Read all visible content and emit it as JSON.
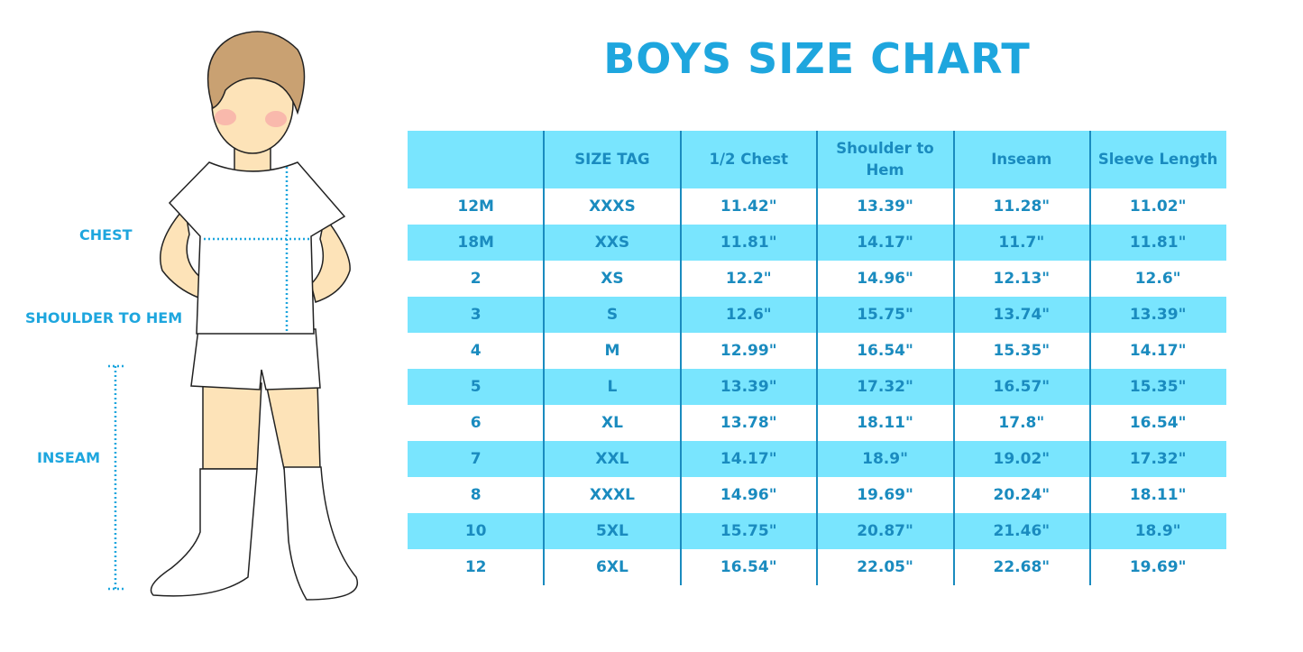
{
  "title": "BOYS SIZE CHART",
  "figure_labels": {
    "chest": "CHEST",
    "shoulder_to_hem": "SHOULDER TO HEM",
    "inseam": "INSEAM"
  },
  "colors": {
    "accent": "#1ea6de",
    "row_fill": "#79e5fe",
    "text": "#1a8bbf"
  },
  "table": {
    "headers": [
      "",
      "SIZE TAG",
      "1/2 Chest",
      "Shoulder to Hem",
      "Inseam",
      "Sleeve Length"
    ],
    "rows": [
      [
        "12M",
        "XXXS",
        "11.42\"",
        "13.39\"",
        "11.28\"",
        "11.02\""
      ],
      [
        "18M",
        "XXS",
        "11.81\"",
        "14.17\"",
        "11.7\"",
        "11.81\""
      ],
      [
        "2",
        "XS",
        "12.2\"",
        "14.96\"",
        "12.13\"",
        "12.6\""
      ],
      [
        "3",
        "S",
        "12.6\"",
        "15.75\"",
        "13.74\"",
        "13.39\""
      ],
      [
        "4",
        "M",
        "12.99\"",
        "16.54\"",
        "15.35\"",
        "14.17\""
      ],
      [
        "5",
        "L",
        "13.39\"",
        "17.32\"",
        "16.57\"",
        "15.35\""
      ],
      [
        "6",
        "XL",
        "13.78\"",
        "18.11\"",
        "17.8\"",
        "16.54\""
      ],
      [
        "7",
        "XXL",
        "14.17\"",
        "18.9\"",
        "19.02\"",
        "17.32\""
      ],
      [
        "8",
        "XXXL",
        "14.96\"",
        "19.69\"",
        "20.24\"",
        "18.11\""
      ],
      [
        "10",
        "5XL",
        "15.75\"",
        "20.87\"",
        "21.46\"",
        "18.9\""
      ],
      [
        "12",
        "6XL",
        "16.54\"",
        "22.05\"",
        "22.68\"",
        "19.69\""
      ]
    ]
  }
}
